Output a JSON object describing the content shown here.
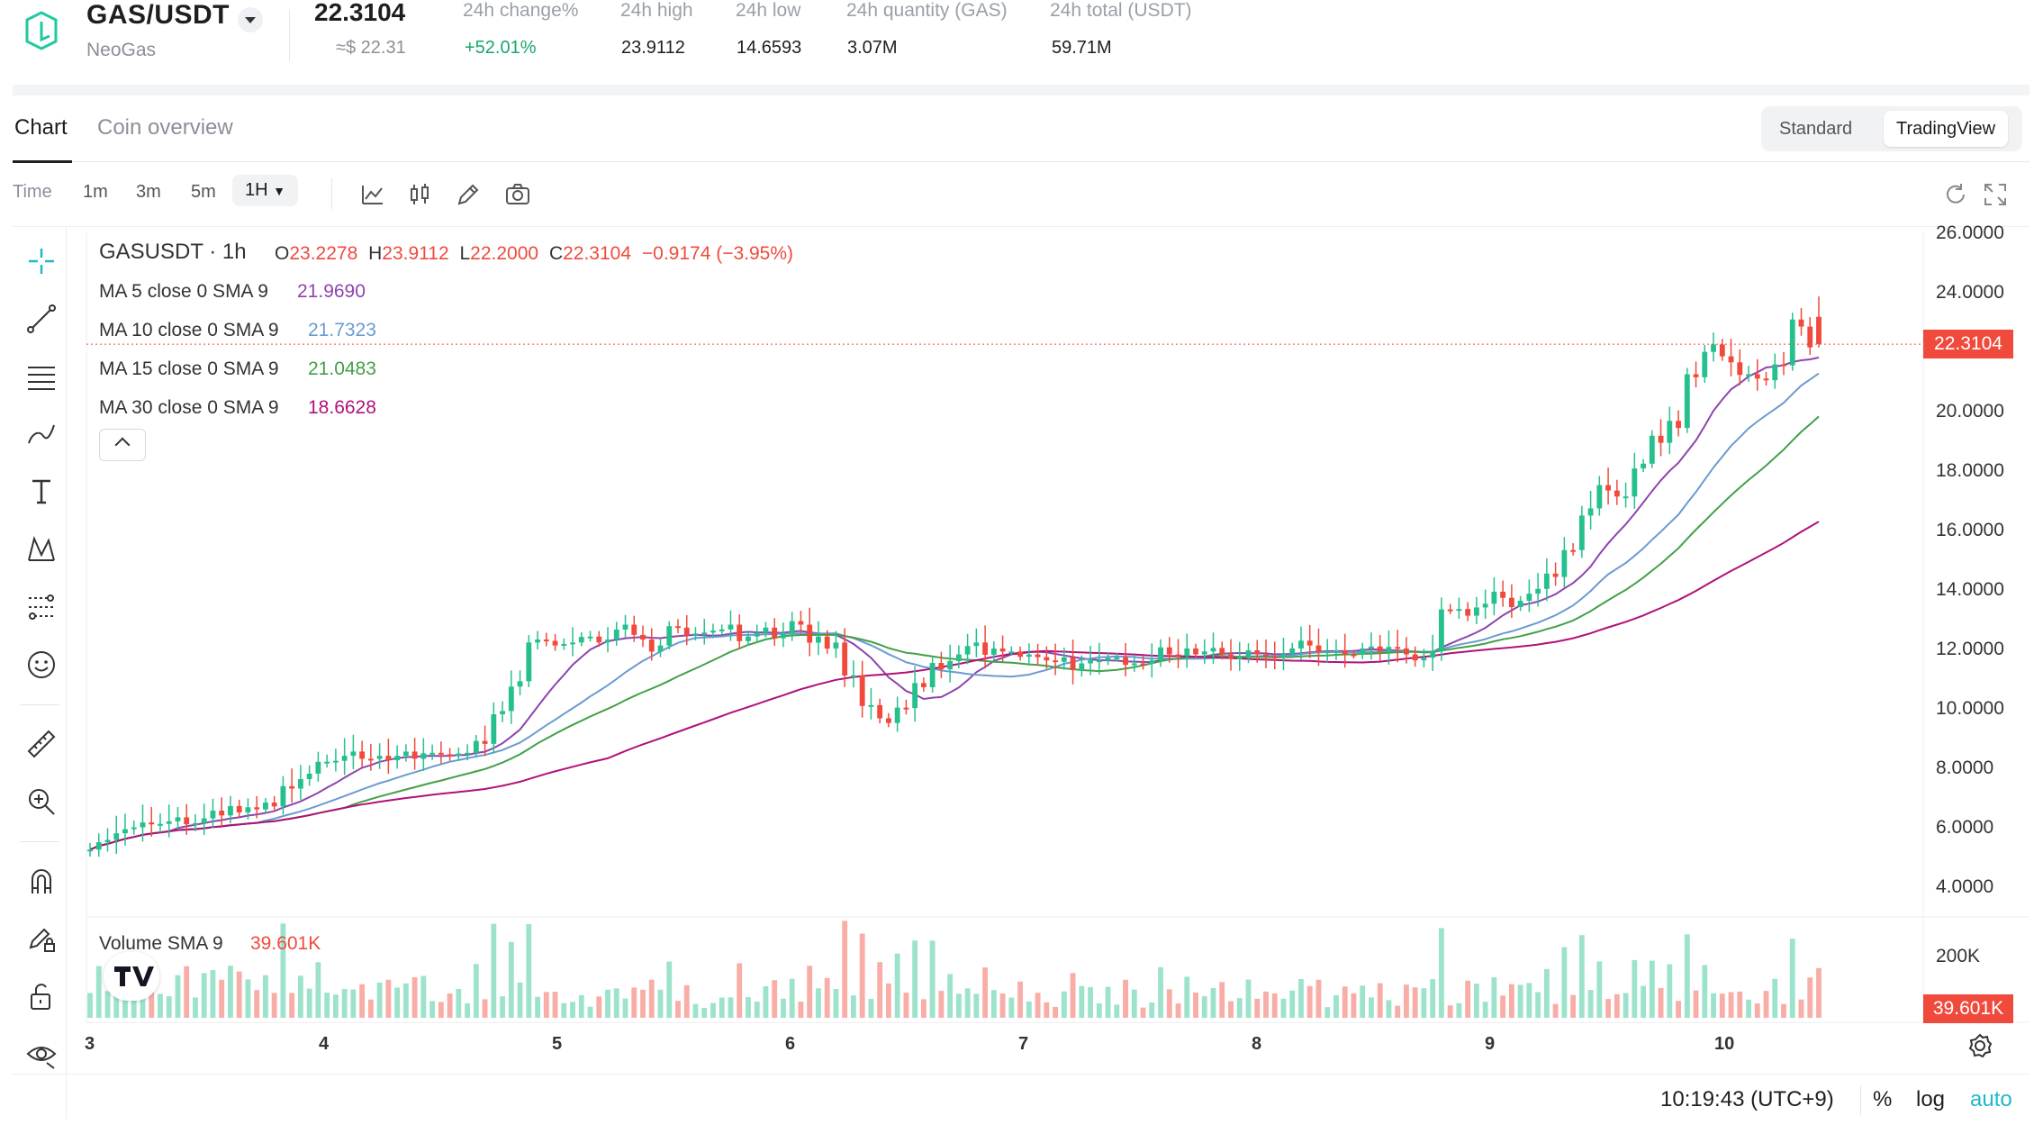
{
  "header": {
    "pair": "GAS/USDT",
    "pair_sub": "NeoGas",
    "last_price": "22.3104",
    "approx_price": "≈$ 22.31",
    "stats": [
      {
        "label": "24h change%",
        "value": "+52.01%"
      },
      {
        "label": "24h high",
        "value": "23.9112"
      },
      {
        "label": "24h low",
        "value": "14.6593"
      },
      {
        "label": "24h quantity (GAS)",
        "value": "3.07M"
      },
      {
        "label": "24h total (USDT)",
        "value": "59.71M"
      }
    ]
  },
  "tabs": {
    "chart": "Chart",
    "overview": "Coin overview"
  },
  "view_toggle": {
    "standard": "Standard",
    "tradingview": "TradingView"
  },
  "toolbar": {
    "time": "Time",
    "intervals": [
      "1m",
      "3m",
      "5m"
    ],
    "selected_interval": "1H"
  },
  "legend": {
    "symbol": "GASUSDT · 1h",
    "o_label": "O",
    "o": "23.2278",
    "h_label": "H",
    "h": "23.9112",
    "l_label": "L",
    "l": "22.2000",
    "c_label": "C",
    "c": "22.3104",
    "change": "−0.9174 (−3.95%)",
    "ma": [
      {
        "label": "MA 5 close 0 SMA 9",
        "value": "21.9690",
        "color": "#8e44ad"
      },
      {
        "label": "MA 10 close 0 SMA 9",
        "value": "21.7323",
        "color": "#6b9bd1"
      },
      {
        "label": "MA 15 close 0 SMA 9",
        "value": "21.0483",
        "color": "#43a047"
      },
      {
        "label": "MA 30 close 0 SMA 9",
        "value": "18.6628",
        "color": "#b0127a"
      }
    ],
    "volume_label": "Volume SMA 9",
    "volume_value": "39.601K"
  },
  "price_axis": [
    "26.0000",
    "24.0000",
    "20.0000",
    "18.0000",
    "16.0000",
    "14.0000",
    "12.0000",
    "10.0000",
    "8.0000",
    "6.0000",
    "4.0000"
  ],
  "current_price_tag": "22.3104",
  "volume_axis": "200K",
  "volume_tag": "39.601K",
  "time_axis": [
    "3",
    "4",
    "5",
    "6",
    "7",
    "8",
    "9",
    "10"
  ],
  "footer": {
    "clock": "10:19:43 (UTC+9)",
    "percent": "%",
    "log": "log",
    "auto": "auto"
  },
  "colors": {
    "up": "#26c08f",
    "down": "#f04a3c",
    "accent": "#14a86a"
  },
  "chart_data": {
    "type": "candlestick",
    "interval": "1h",
    "y_range": [
      4,
      26
    ],
    "close_series": [
      5.6,
      5.9,
      6.1,
      6.2,
      6.3,
      6.2,
      6.4,
      6.5,
      6.6,
      6.7,
      6.8,
      7.4,
      7.9,
      8.3,
      8.5,
      8.4,
      8.5,
      8.5,
      8.4,
      8.6,
      8.5,
      8.6,
      8.9,
      10.0,
      11.0,
      12.4,
      12.2,
      12.3,
      12.5,
      12.4,
      12.9,
      12.4,
      12.2,
      12.8,
      12.6,
      12.7,
      12.9,
      12.5,
      12.8,
      12.6,
      12.9,
      12.5,
      12.3,
      11.2,
      10.2,
      9.6,
      10.1,
      10.8,
      11.4,
      11.9,
      12.3,
      12.1,
      12.0,
      11.9,
      11.7,
      11.8,
      11.6,
      11.7,
      11.8,
      11.6,
      11.7,
      11.9,
      12.1,
      12.0,
      11.9,
      11.8,
      11.9,
      11.8,
      12.1,
      12.2,
      12.0,
      11.9,
      12.1,
      12.0,
      12.1,
      11.7,
      12.0,
      13.4,
      13.2,
      13.6,
      13.8,
      13.7,
      14.1,
      14.5,
      15.4,
      16.8,
      17.4,
      17.2,
      18.3,
      19.0,
      19.5,
      21.2,
      22.3,
      21.7,
      21.3,
      21.1,
      21.6,
      22.9,
      22.3
    ],
    "ma5_last": 21.969,
    "ma10_last": 21.7323,
    "ma15_last": 21.0483,
    "ma30_last": 18.6628
  }
}
